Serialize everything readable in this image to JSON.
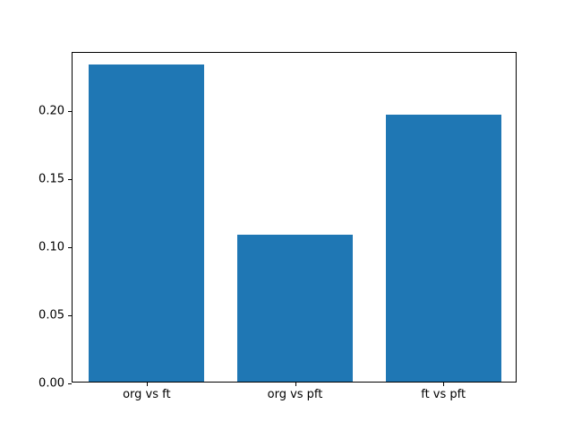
{
  "figure": {
    "background_color": "#ffffff",
    "axes_edge_color": "#000000"
  },
  "chart_data": {
    "type": "bar",
    "title": "",
    "xlabel": "",
    "ylabel": "",
    "categories": [
      "org vs ft",
      "org vs pft",
      "ft vs pft"
    ],
    "values": [
      0.233,
      0.108,
      0.196
    ],
    "bar_color": "#1f77b4",
    "bar_width_fraction": 0.78,
    "ylim": [
      0,
      0.243
    ],
    "yticks": [
      0.0,
      0.05,
      0.1,
      0.15,
      0.2
    ],
    "ytick_labels": [
      "0.00",
      "0.05",
      "0.10",
      "0.15",
      "0.20"
    ],
    "grid": false,
    "legend": null
  }
}
